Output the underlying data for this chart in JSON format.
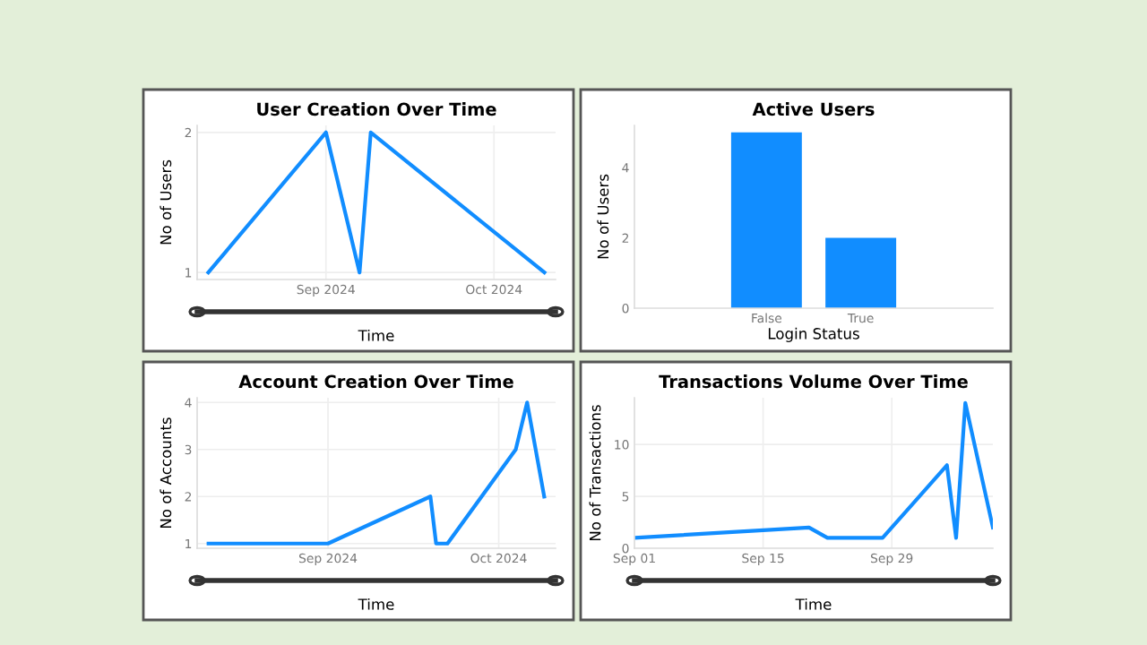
{
  "chart_data": [
    {
      "type": "line",
      "title": "User Creation Over Time",
      "xlabel": "Time",
      "ylabel": "No of Users",
      "x": [
        "2024-08-11",
        "2024-09-01",
        "2024-09-07",
        "2024-09-09",
        "2024-10-10"
      ],
      "series": [
        {
          "color": "#118dff",
          "values": [
            1,
            2,
            1,
            2,
            1
          ]
        }
      ],
      "xlim": [
        "2024-08-09",
        "2024-10-12"
      ],
      "xticks": [
        {
          "value": "2024-09-01",
          "label": "Sep 2024"
        },
        {
          "value": "2024-10-01",
          "label": "Oct 2024"
        }
      ],
      "ylim": [
        0.95,
        2.05
      ],
      "yticks": [
        1,
        2
      ],
      "grid": true
    },
    {
      "type": "bar",
      "title": "Active Users",
      "xlabel": "Login Status",
      "ylabel": "No of Users",
      "categories": [
        "False",
        "True"
      ],
      "series": [
        {
          "color": "#118dff",
          "values": [
            5,
            2
          ]
        }
      ],
      "ylim": [
        0,
        5.2
      ],
      "yticks": [
        0,
        2,
        4
      ]
    },
    {
      "type": "line",
      "title": "Account Creation Over Time",
      "xlabel": "Time",
      "ylabel": "No of Accounts",
      "x": [
        "2024-08-11",
        "2024-09-01",
        "2024-09-19",
        "2024-09-20",
        "2024-09-22",
        "2024-10-04",
        "2024-10-06",
        "2024-10-09"
      ],
      "series": [
        {
          "color": "#118dff",
          "values": [
            1,
            1,
            2,
            1,
            1,
            3,
            4,
            2
          ]
        }
      ],
      "xlim": [
        "2024-08-09",
        "2024-10-11"
      ],
      "xticks": [
        {
          "value": "2024-09-01",
          "label": "Sep 2024"
        },
        {
          "value": "2024-10-01",
          "label": "Oct 2024"
        }
      ],
      "ylim": [
        0.9,
        4.1
      ],
      "yticks": [
        1,
        2,
        3,
        4
      ],
      "grid": true
    },
    {
      "type": "line",
      "title": "Transactions Volume Over Time",
      "xlabel": "Time",
      "ylabel": "No of Transactions",
      "x": [
        "2024-09-01",
        "2024-09-20",
        "2024-09-22",
        "2024-09-28",
        "2024-10-05",
        "2024-10-06",
        "2024-10-07",
        "2024-10-10"
      ],
      "series": [
        {
          "color": "#118dff",
          "values": [
            1,
            2,
            1,
            1,
            8,
            1,
            14,
            2
          ]
        }
      ],
      "xlim": [
        "2024-09-01",
        "2024-10-10"
      ],
      "xticks": [
        {
          "value": "2024-09-01",
          "label": "Sep 01"
        },
        {
          "value": "2024-09-15",
          "label": "Sep 15"
        },
        {
          "value": "2024-09-29",
          "label": "Sep 29"
        }
      ],
      "ylim": [
        0,
        14.5
      ],
      "yticks": [
        0,
        5,
        10
      ],
      "grid": true
    }
  ]
}
